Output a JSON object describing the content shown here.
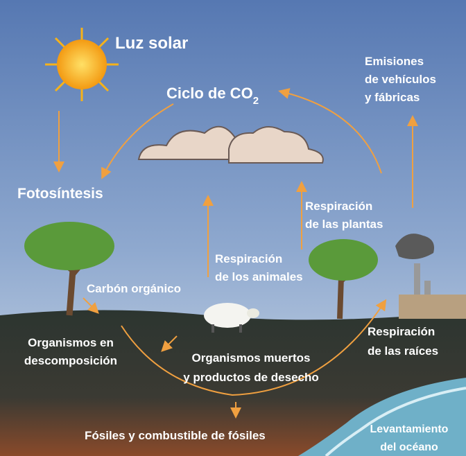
{
  "labels": {
    "sunlight": "Luz solar",
    "title": {
      "text": "Ciclo de CO",
      "subscript": "2"
    },
    "emissions": [
      "Emisiones",
      "de vehículos",
      "y fábricas"
    ],
    "photosynthesis": "Fotosíntesis",
    "plant_respiration": [
      "Respiración",
      "de las plantas"
    ],
    "animal_respiration": [
      "Respiración",
      "de los animales"
    ],
    "organic_carbon": "Carbón orgánico",
    "decomposition": [
      "Organismos en",
      "descomposición"
    ],
    "dead_organisms": [
      "Organismos muertos",
      "y productos de desecho"
    ],
    "root_respiration": [
      "Respiración",
      "de las raíces"
    ],
    "fossils": "Fósiles y combustible de fósiles",
    "ocean_uplift": [
      "Levantamiento",
      "del océano"
    ]
  }
}
